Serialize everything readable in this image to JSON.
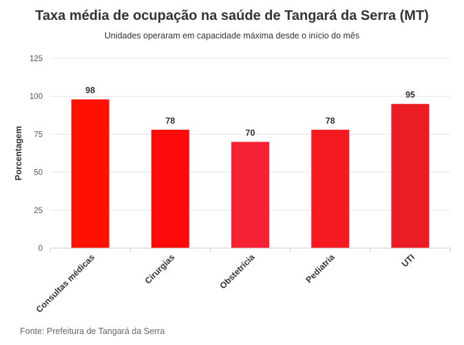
{
  "chart_data": {
    "type": "bar",
    "title": "Taxa média de ocupação na saúde de Tangará da Serra (MT)",
    "subtitle": "Unidades operaram em capacidade máxima desde o início do mês",
    "xlabel": "",
    "ylabel": "Porcentagem",
    "ylim": [
      0,
      125
    ],
    "yticks": [
      0,
      25,
      50,
      75,
      100,
      125
    ],
    "grid": true,
    "legend": "none",
    "categories": [
      "Consultas médicas",
      "Cirurgias",
      "Obstetrícia",
      "Pediatria",
      "UTI"
    ],
    "values": [
      98,
      78,
      70,
      78,
      95
    ],
    "colors": [
      "#ff1100",
      "#ff0a0a",
      "#f52233",
      "#f51920",
      "#ec1c24"
    ],
    "source": "Fonte: Prefeitura de Tangará da Serra"
  }
}
